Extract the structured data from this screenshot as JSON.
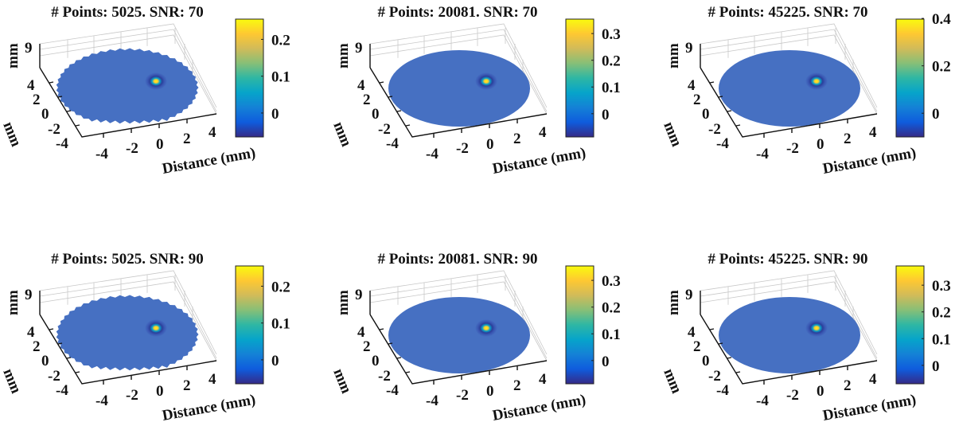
{
  "colormap": [
    "#352a87",
    "#0f5cdd",
    "#1481d6",
    "#06a4ca",
    "#2eb7a4",
    "#87bf77",
    "#d1bb59",
    "#fec832",
    "#f9fb0e"
  ],
  "surface_color": "#4670c2",
  "chart_data": [
    {
      "type": "surface",
      "title": "# Points: 5025. SNR: 70",
      "points": 5025,
      "snr": 70,
      "xlabel": "Distance (mm)",
      "ylabel": "mm",
      "zlabel": "mm",
      "xticks": [
        "-4",
        "-2",
        "0",
        "2",
        "4"
      ],
      "yticks": [
        "4",
        "2",
        "0",
        "-2",
        "-4"
      ],
      "zticks": [
        "9"
      ],
      "clim": [
        -0.065,
        0.255
      ],
      "cticks": [
        0,
        0.1,
        0.2
      ],
      "ctick_labels": [
        "0",
        "0.1",
        "0.2"
      ],
      "edge": "jagged"
    },
    {
      "type": "surface",
      "title": "# Points: 20081. SNR: 70",
      "points": 20081,
      "snr": 70,
      "xlabel": "Distance (mm)",
      "ylabel": "mm",
      "zlabel": "mm",
      "xticks": [
        "-4",
        "-2",
        "0",
        "2",
        "4"
      ],
      "yticks": [
        "4",
        "2",
        "0",
        "-2",
        "-4"
      ],
      "zticks": [
        "9"
      ],
      "clim": [
        -0.087,
        0.354
      ],
      "cticks": [
        0,
        0.1,
        0.2,
        0.3
      ],
      "ctick_labels": [
        "0",
        "0.1",
        "0.2",
        "0.3"
      ],
      "edge": "smooth"
    },
    {
      "type": "surface",
      "title": "# Points: 45225. SNR: 70",
      "points": 45225,
      "snr": 70,
      "xlabel": "Distance (mm)",
      "ylabel": "mm",
      "zlabel": "mm",
      "xticks": [
        "-4",
        "-2",
        "0",
        "2",
        "4"
      ],
      "yticks": [
        "4",
        "2",
        "0",
        "-2",
        "-4"
      ],
      "zticks": [
        "9"
      ],
      "clim": [
        -0.1,
        0.397
      ],
      "cticks": [
        0,
        0.2,
        0.4
      ],
      "ctick_labels": [
        "0",
        "0.2",
        "0.4"
      ],
      "edge": "smooth"
    },
    {
      "type": "surface",
      "title": "# Points: 5025. SNR: 90",
      "points": 5025,
      "snr": 90,
      "xlabel": "Distance (mm)",
      "ylabel": "mm",
      "zlabel": "mm",
      "xticks": [
        "-4",
        "-2",
        "0",
        "2",
        "4"
      ],
      "yticks": [
        "4",
        "2",
        "0",
        "-2",
        "-4"
      ],
      "zticks": [
        "9"
      ],
      "clim": [
        -0.065,
        0.255
      ],
      "cticks": [
        0,
        0.1,
        0.2
      ],
      "ctick_labels": [
        "0",
        "0.1",
        "0.2"
      ],
      "edge": "jagged"
    },
    {
      "type": "surface",
      "title": "# Points: 20081. SNR: 90",
      "points": 20081,
      "snr": 90,
      "xlabel": "Distance (mm)",
      "ylabel": "mm",
      "zlabel": "mm",
      "xticks": [
        "-4",
        "-2",
        "0",
        "2",
        "4"
      ],
      "yticks": [
        "4",
        "2",
        "0",
        "-2",
        "-4"
      ],
      "zticks": [
        "9"
      ],
      "clim": [
        -0.087,
        0.354
      ],
      "cticks": [
        0,
        0.1,
        0.2,
        0.3
      ],
      "ctick_labels": [
        "0",
        "0.1",
        "0.2",
        "0.3"
      ],
      "edge": "smooth"
    },
    {
      "type": "surface",
      "title": "# Points: 45225. SNR: 90",
      "points": 45225,
      "snr": 90,
      "xlabel": "Distance (mm)",
      "ylabel": "mm",
      "zlabel": "mm",
      "xticks": [
        "-4",
        "-2",
        "0",
        "2",
        "4"
      ],
      "yticks": [
        "4",
        "2",
        "0",
        "-2",
        "-4"
      ],
      "zticks": [
        "9"
      ],
      "clim": [
        -0.069,
        0.372
      ],
      "cticks": [
        0,
        0.1,
        0.2,
        0.3
      ],
      "ctick_labels": [
        "0",
        "0.1",
        "0.2",
        "0.3"
      ],
      "edge": "smooth"
    }
  ]
}
